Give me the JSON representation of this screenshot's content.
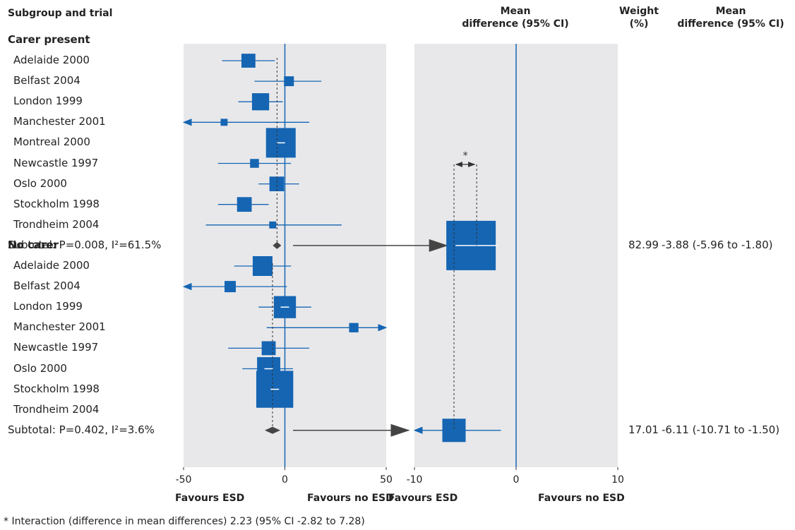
{
  "header": {
    "subgroup_trial": "Subgroup and trial",
    "mean_diff_title": "Mean\ndifference (95% CI)",
    "weight_title": "Weight\n(%)",
    "mean_diff_col_title": "Mean\ndifference (95% CI)"
  },
  "chart_data": [
    {
      "type": "forest",
      "panel": "trial-level",
      "xlim": [
        -50,
        50
      ],
      "ticks": [
        "-50",
        "0",
        "50"
      ],
      "xlabel_left": "Favours ESD",
      "xlabel_right": "Favours no ESD",
      "subgroups": [
        {
          "name": "Carer present",
          "pooled_estimate": -3.88,
          "trials": [
            {
              "name": "Adelaide 2000",
              "est": -18,
              "lo": -31,
              "hi": -5,
              "weight": 2
            },
            {
              "name": "Belfast 2004",
              "est": 2,
              "lo": -15,
              "hi": 18,
              "weight": 1
            },
            {
              "name": "London 1999",
              "est": -12,
              "lo": -23,
              "hi": -1,
              "weight": 3
            },
            {
              "name": "Manchester 2001",
              "est": -30,
              "lo": -50,
              "hi": 12,
              "weight": 0.5
            },
            {
              "name": "Montreal 2000",
              "est": -2,
              "lo": -9,
              "hi": 5,
              "weight": 9
            },
            {
              "name": "Newcastle 1997",
              "est": -15,
              "lo": -33,
              "hi": 3,
              "weight": 0.8
            },
            {
              "name": "Oslo 2000",
              "est": -4,
              "lo": -13,
              "hi": 7,
              "weight": 2.2
            },
            {
              "name": "Stockholm 1998",
              "est": -20,
              "lo": -33,
              "hi": -8,
              "weight": 2.2
            },
            {
              "name": "Trondheim 2004",
              "est": -6,
              "lo": -39,
              "hi": 28,
              "weight": 0.5
            }
          ],
          "subtotal_label": "Subtotal: P=0.008, I²=61.5%",
          "subtotal_est": -3.88
        },
        {
          "name": "No carer",
          "pooled_estimate": -6.11,
          "trials": [
            {
              "name": "Adelaide 2000",
              "est": -11,
              "lo": -25,
              "hi": 3,
              "weight": 4
            },
            {
              "name": "Belfast 2004",
              "est": -27,
              "lo": -50,
              "hi": 1,
              "weight": 1.3
            },
            {
              "name": "London 1999",
              "est": 0,
              "lo": -13,
              "hi": 13,
              "weight": 5
            },
            {
              "name": "Manchester 2001",
              "est": 34,
              "lo": -9,
              "hi": 50,
              "weight": 0.9
            },
            {
              "name": "Newcastle 1997",
              "est": -8,
              "lo": -28,
              "hi": 12,
              "weight": 2
            },
            {
              "name": "Oslo 2000",
              "est": -8,
              "lo": -21,
              "hi": 4,
              "weight": 5.5
            },
            {
              "name": "Stockholm 1998",
              "est": -5,
              "lo": -12,
              "hi": 2,
              "weight": 14
            },
            {
              "name": "Trondheim 2004",
              "est": null,
              "lo": null,
              "hi": null,
              "weight": 0
            }
          ],
          "subtotal_label": "Subtotal: P=0.402, I²=3.6%",
          "subtotal_est": -6.11
        }
      ]
    },
    {
      "type": "forest",
      "panel": "subgroup-pooled",
      "xlim": [
        -10,
        10
      ],
      "ticks": [
        "-10",
        "0",
        "10"
      ],
      "xlabel_left": "Favours ESD",
      "xlabel_right": "Favours no ESD",
      "rows": [
        {
          "name": "Carer present",
          "est": -3.88,
          "lo": -5.96,
          "hi": -1.8,
          "weight": 82.99,
          "weight_text": "82.99",
          "ci_text": "-3.88 (-5.96 to -1.80)"
        },
        {
          "name": "No carer",
          "est": -6.11,
          "lo": -10.71,
          "hi": -1.5,
          "weight": 17.01,
          "weight_text": "17.01",
          "ci_text": "-6.11 (-10.71 to -1.50)"
        }
      ],
      "interaction_marker": "*"
    }
  ],
  "footnote": "* Interaction (difference in mean differences) 2.23 (95% CI -2.82 to 7.28)",
  "colors": {
    "marker": "#1565b3",
    "panel_bg": "#e8e8ea",
    "diamond": "#444444",
    "arrow": "#444444"
  }
}
